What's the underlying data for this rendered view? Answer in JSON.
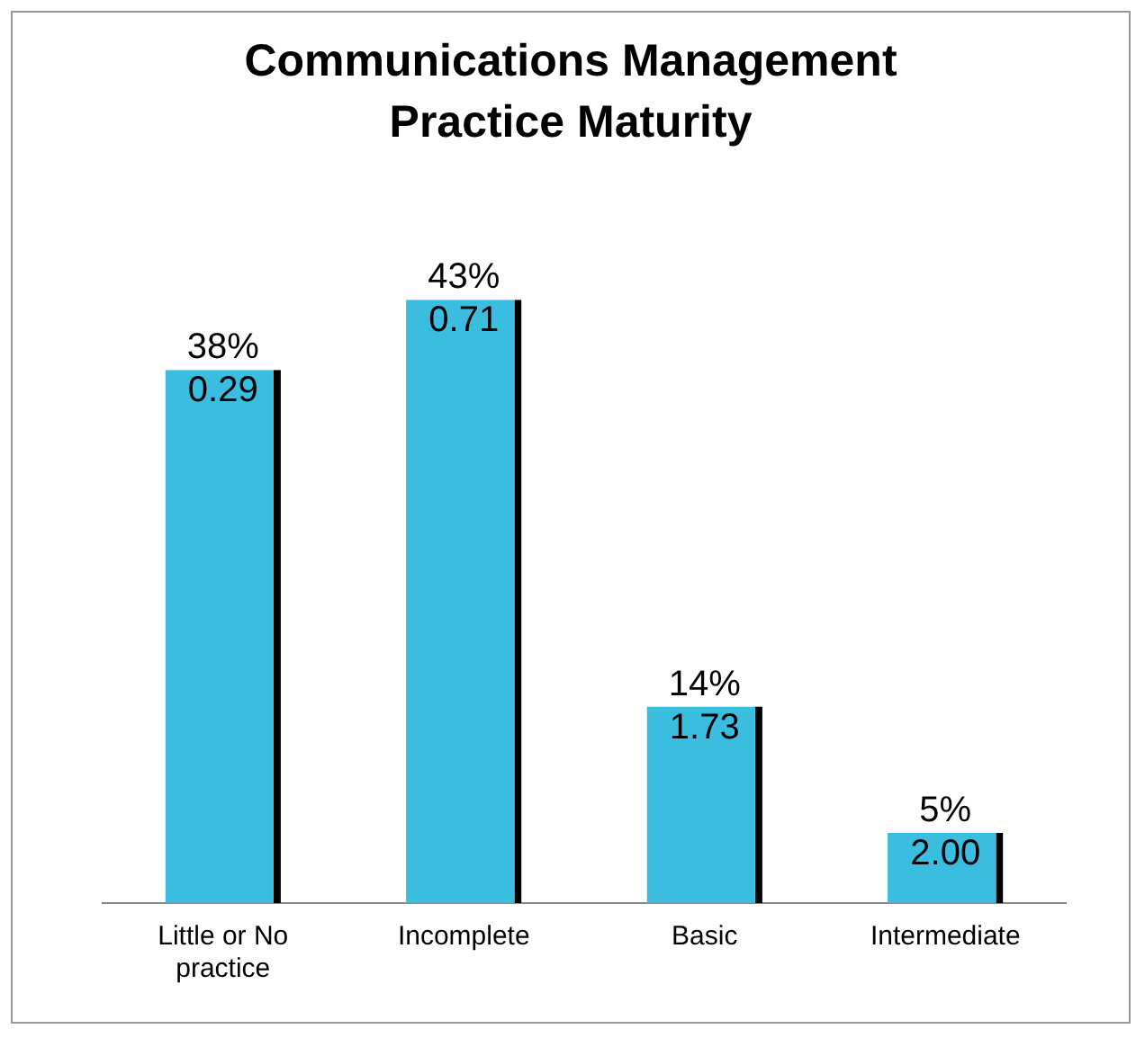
{
  "chart_data": {
    "type": "bar",
    "title": "Communications Management Practice Maturity",
    "categories": [
      "Little or No practice",
      "Incomplete",
      "Basic",
      "Intermediate"
    ],
    "values": [
      38,
      43,
      14,
      5
    ],
    "color": "#3bbde0",
    "value_labels": [
      "38%",
      "43%",
      "14%",
      "5%"
    ],
    "annotations": [
      {
        "text": "0.29",
        "x": "Little or No practice",
        "y": 38
      },
      {
        "text": "0.71",
        "x": "Incomplete",
        "y": 43
      },
      {
        "text": "1.73",
        "x": "Basic",
        "y": 14
      },
      {
        "text": "2.00",
        "x": "Intermediate",
        "y": 5
      }
    ],
    "tick_labels": "x",
    "grid": false,
    "legend": false
  }
}
